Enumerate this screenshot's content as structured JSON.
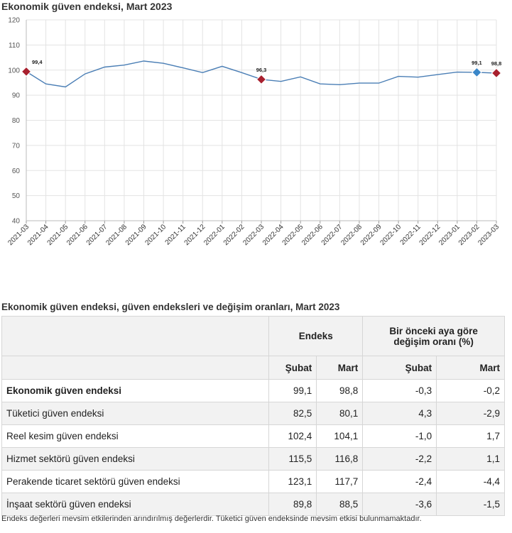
{
  "chart_title": "Ekonomik güven endeksi, Mart 2023",
  "chart_data": {
    "type": "line",
    "title": "Ekonomik güven endeksi, Mart 2023",
    "xlabel": "",
    "ylabel": "",
    "ylim": [
      40,
      120
    ],
    "yticks": [
      "40",
      "50",
      "60",
      "70",
      "80",
      "90",
      "100",
      "110",
      "120"
    ],
    "grid": true,
    "line_color": "#4a7eb5",
    "categories": [
      "2021-03",
      "2021-04",
      "2021-05",
      "2021-06",
      "2021-07",
      "2021-08",
      "2021-09",
      "2021-10",
      "2021-11",
      "2021-12",
      "2022-01",
      "2022-02",
      "2022-03",
      "2022-04",
      "2022-05",
      "2022-06",
      "2022-07",
      "2022-08",
      "2022-09",
      "2022-10",
      "2022-11",
      "2022-12",
      "2023-01",
      "2023-02",
      "2023-03"
    ],
    "series": [
      {
        "values": [
          99.4,
          94.5,
          93.3,
          98.5,
          101.2,
          102.0,
          103.6,
          102.7,
          100.9,
          99.0,
          101.5,
          99.0,
          96.3,
          95.5,
          97.3,
          94.5,
          94.2,
          94.8,
          94.8,
          97.5,
          97.2,
          98.2,
          99.2,
          99.1,
          98.8
        ]
      }
    ],
    "highlights": [
      {
        "index": 0,
        "label": "99,4",
        "color": "#a8202e"
      },
      {
        "index": 12,
        "label": "96,3",
        "color": "#a8202e"
      },
      {
        "index": 23,
        "label": "99,1",
        "color": "#3a86c8"
      },
      {
        "index": 24,
        "label": "98,8",
        "color": "#a8202e"
      }
    ]
  },
  "table": {
    "title": "Ekonomik güven endeksi, güven endeksleri ve değişim oranları, Mart 2023",
    "group_endeks": "Endeks",
    "group_change_line1": "Bir önceki aya göre",
    "group_change_line2": "değişim oranı (%)",
    "sub_headers": [
      "Şubat",
      "Mart",
      "Şubat",
      "Mart"
    ],
    "rows": [
      {
        "name": "Ekonomik güven endeksi",
        "values": [
          "99,1",
          "98,8",
          "-0,3",
          "-0,2"
        ]
      },
      {
        "name": "Tüketici güven endeksi",
        "values": [
          "82,5",
          "80,1",
          "4,3",
          "-2,9"
        ]
      },
      {
        "name": "Reel kesim güven endeksi",
        "values": [
          "102,4",
          "104,1",
          "-1,0",
          "1,7"
        ]
      },
      {
        "name": "Hizmet sektörü güven endeksi",
        "values": [
          "115,5",
          "116,8",
          "-2,2",
          "1,1"
        ]
      },
      {
        "name": "Perakende ticaret sektörü güven endeksi",
        "values": [
          "123,1",
          "117,7",
          "-2,4",
          "-4,4"
        ]
      },
      {
        "name": "İnşaat sektörü güven endeksi",
        "values": [
          "89,8",
          "88,5",
          "-3,6",
          "-1,5"
        ]
      }
    ]
  },
  "footnote": "Endeks değerleri mevsim etkilerinden arındırılmış değerlerdir. Tüketici güven endeksinde mevsim etkisi bulunmamaktadır."
}
